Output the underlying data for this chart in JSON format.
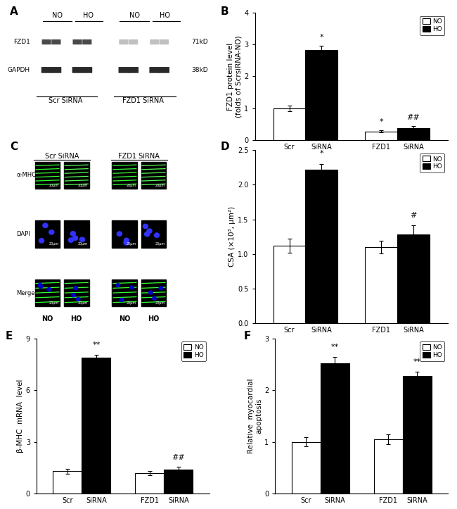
{
  "panel_B": {
    "ylabel": "FZD1 protein level\n(folds of ScrsiRNA-NO)",
    "ylim": [
      0,
      4
    ],
    "yticks": [
      0,
      1,
      2,
      3,
      4
    ],
    "xtick_labels": [
      "Scr",
      "SiRNA",
      "FZD1",
      "SiRNA"
    ],
    "NO_values": [
      1.0,
      0.27
    ],
    "HO_values": [
      2.83,
      0.38
    ],
    "NO_errors": [
      0.09,
      0.04
    ],
    "HO_errors": [
      0.13,
      0.05
    ],
    "bar_width": 0.35,
    "annotations_NO": [
      "",
      "*"
    ],
    "annotations_HO": [
      "*",
      "##"
    ]
  },
  "panel_D": {
    "ylabel": "CSA (×10³, μm²)",
    "ylim": [
      0,
      2.5
    ],
    "yticks": [
      0.0,
      0.5,
      1.0,
      1.5,
      2.0,
      2.5
    ],
    "xtick_labels": [
      "Scr",
      "SiRNA",
      "FZD1",
      "SiRNA"
    ],
    "NO_values": [
      1.12,
      1.1
    ],
    "HO_values": [
      2.22,
      1.28
    ],
    "NO_errors": [
      0.1,
      0.09
    ],
    "HO_errors": [
      0.08,
      0.13
    ],
    "bar_width": 0.35,
    "annotations_NO": [
      "",
      ""
    ],
    "annotations_HO": [
      "*",
      "#"
    ]
  },
  "panel_E": {
    "ylabel": "β-MHC  mRNA  level",
    "ylim": [
      0,
      9
    ],
    "yticks": [
      0,
      3,
      6,
      9
    ],
    "xtick_labels": [
      "Scr",
      "SiRNA",
      "FZD1",
      "SiRNA"
    ],
    "NO_values": [
      1.3,
      1.2
    ],
    "HO_values": [
      7.9,
      1.4
    ],
    "NO_errors": [
      0.15,
      0.12
    ],
    "HO_errors": [
      0.15,
      0.15
    ],
    "bar_width": 0.35,
    "annotations_NO": [
      "",
      ""
    ],
    "annotations_HO": [
      "**",
      "##"
    ]
  },
  "panel_F": {
    "ylabel": "Relative  myocardial\napoptosis",
    "ylim": [
      0,
      3
    ],
    "yticks": [
      0,
      1,
      2,
      3
    ],
    "xtick_labels": [
      "Scr",
      "SiRNA",
      "FZD1",
      "SiRNA"
    ],
    "NO_values": [
      1.0,
      1.05
    ],
    "HO_values": [
      2.52,
      2.28
    ],
    "NO_errors": [
      0.09,
      0.1
    ],
    "HO_errors": [
      0.12,
      0.08
    ],
    "bar_width": 0.35,
    "annotations_NO": [
      "",
      ""
    ],
    "annotations_HO": [
      "**",
      "**"
    ]
  },
  "background_color": "white",
  "panel_labels_fontsize": 11,
  "axis_label_fontsize": 7.5,
  "tick_fontsize": 7,
  "annotation_fontsize": 8
}
